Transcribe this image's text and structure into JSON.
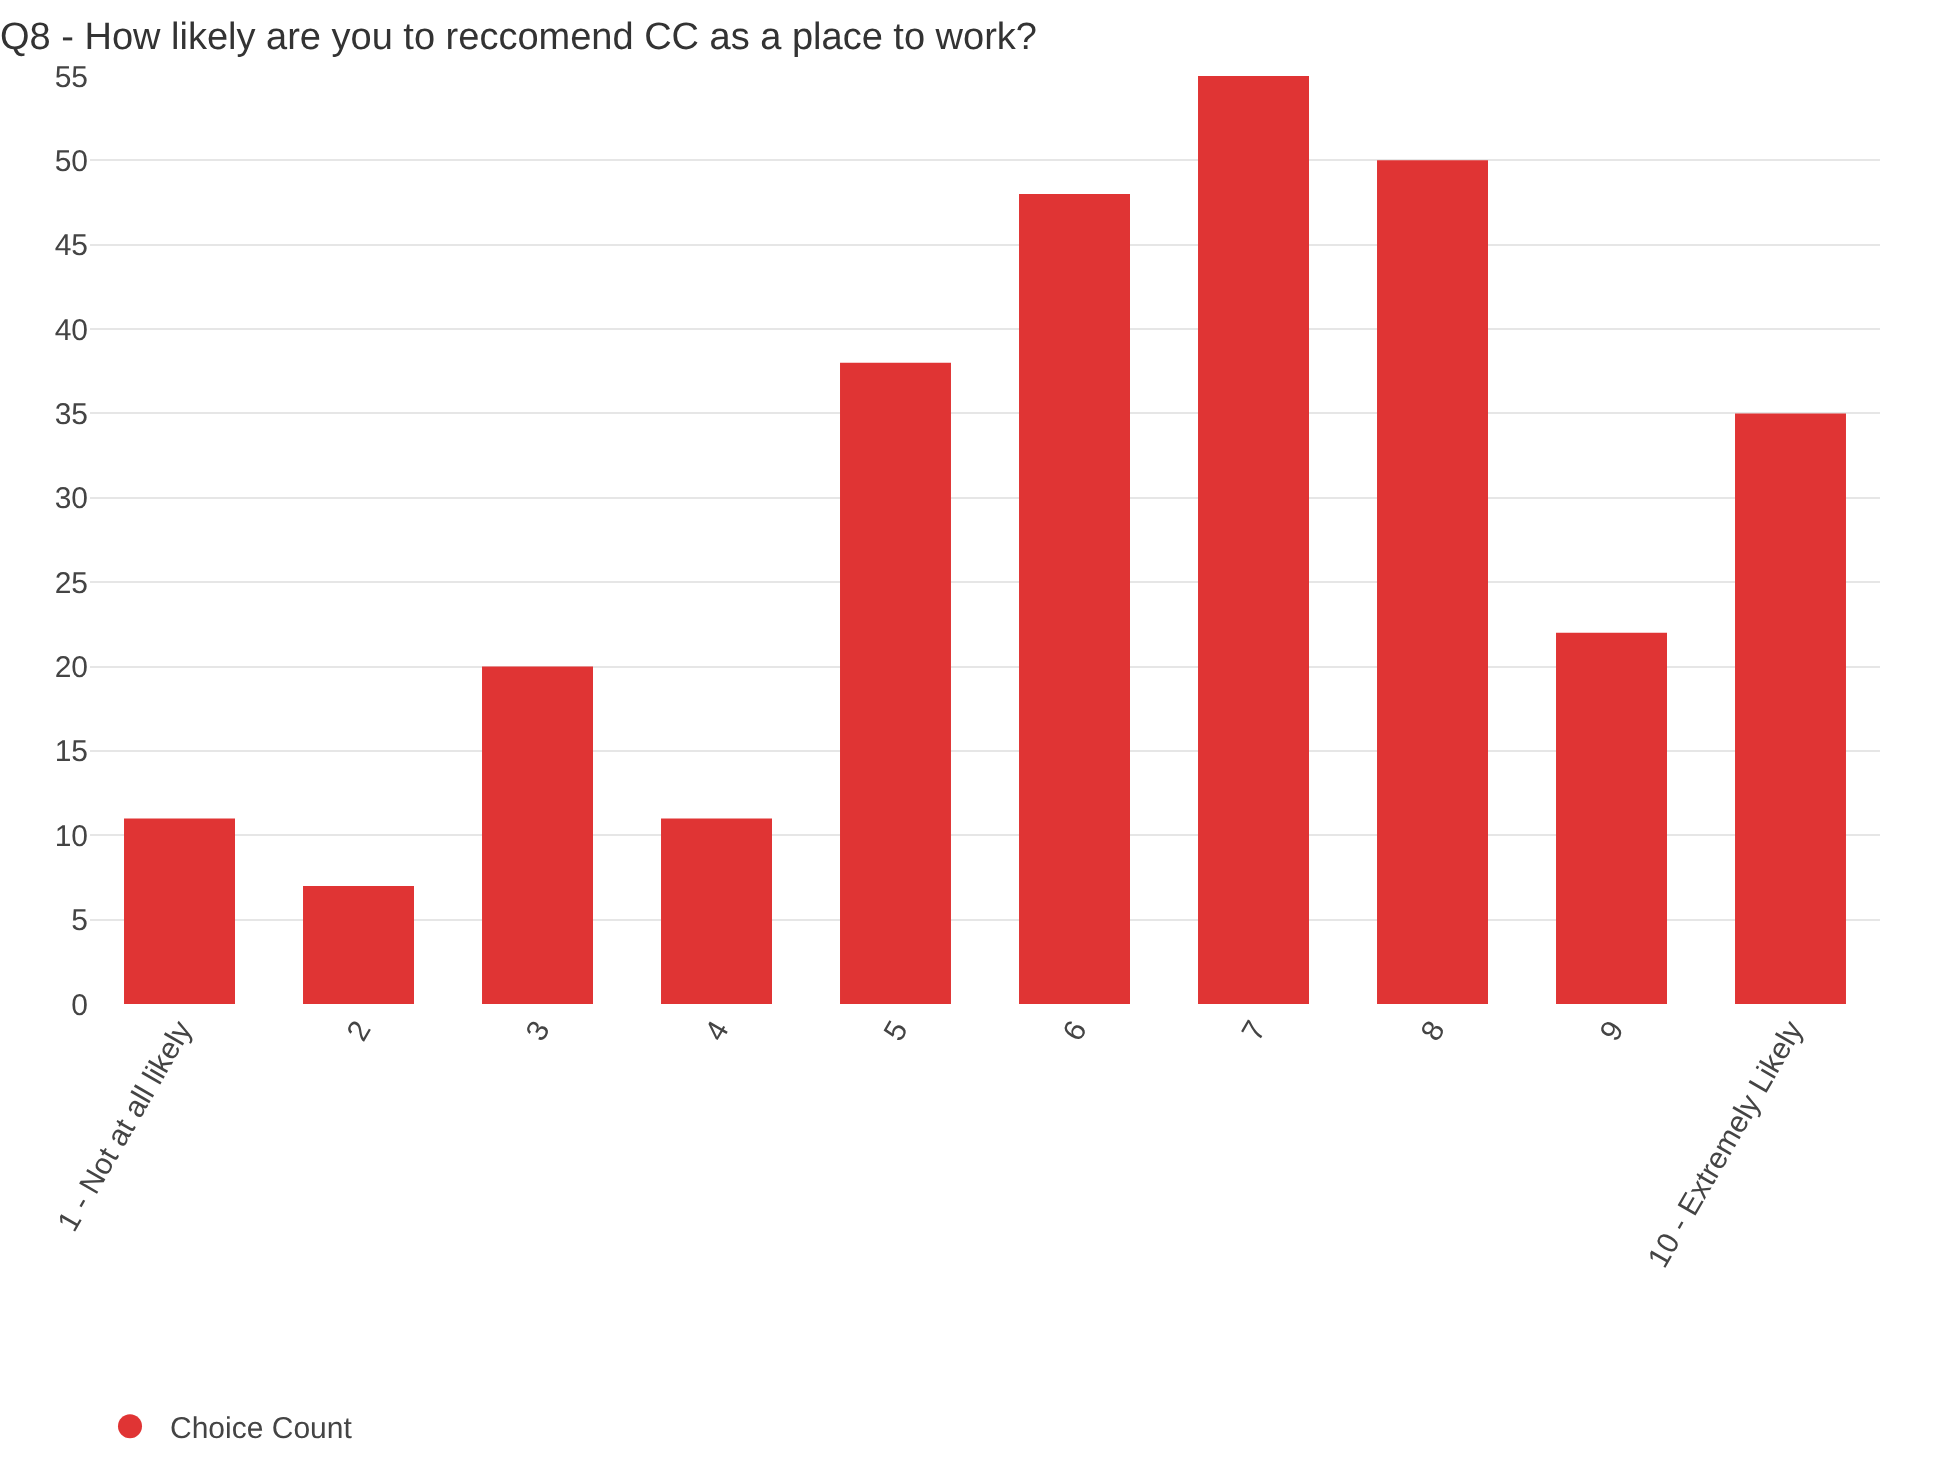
{
  "chart_data": {
    "type": "bar",
    "title": "Q8 - How likely are you to reccomend CC as a place to work?",
    "categories": [
      "1 - Not at all likely",
      "2",
      "3",
      "4",
      "5",
      "6",
      "7",
      "8",
      "9",
      "10 - Extremely Likely"
    ],
    "series": [
      {
        "name": "Choice Count",
        "color": "#e03434",
        "values": [
          11,
          7,
          20,
          11,
          38,
          48,
          55,
          50,
          22,
          35
        ]
      }
    ],
    "ylim": [
      0,
      55
    ],
    "yticks": [
      0,
      5,
      10,
      15,
      20,
      25,
      30,
      35,
      40,
      45,
      50,
      55
    ],
    "grid": "y",
    "legend": "bottom left"
  }
}
